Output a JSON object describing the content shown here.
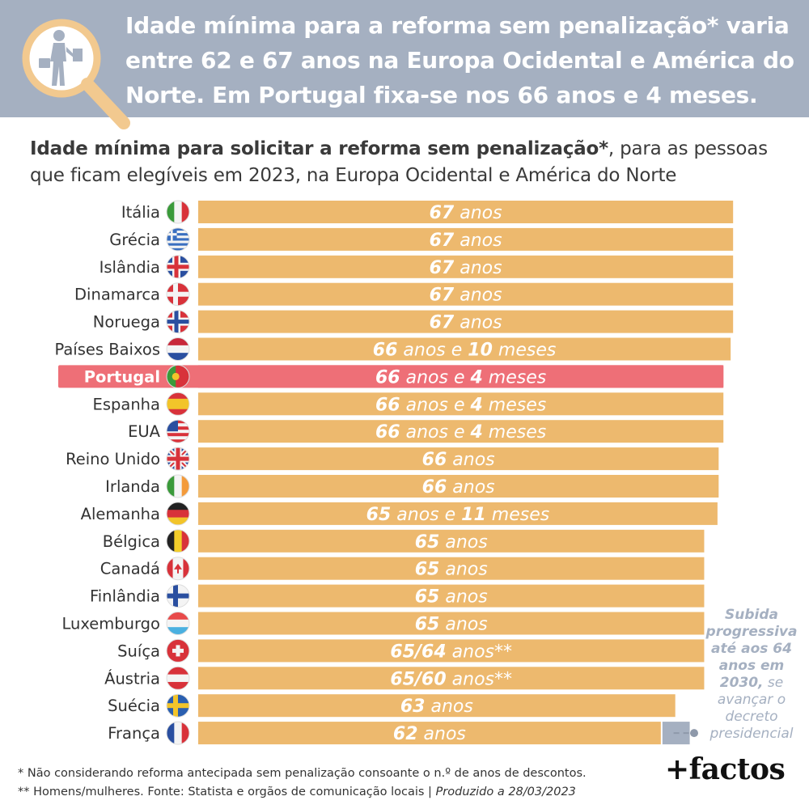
{
  "header": {
    "title": "Idade mínima para a reforma sem penalização* varia entre 62 e 67 anos na Europa Ocidental e América do Norte. Em Portugal fixa-se nos 66 anos e 4 meses.",
    "icon": "magnifier-retiree-icon"
  },
  "subtitle": {
    "bold": "Idade mínima para solicitar a reforma sem penalização*",
    "rest": ", para as pessoas que ficam elegíveis em 2023, na Europa Ocidental e América do Norte"
  },
  "chart_data": {
    "type": "bar",
    "orientation": "horizontal",
    "unit": "anos",
    "categories": [
      "Itália",
      "Grécia",
      "Islândia",
      "Dinamarca",
      "Noruega",
      "Países Baixos",
      "Portugal",
      "Espanha",
      "EUA",
      "Reino Unido",
      "Irlanda",
      "Alemanha",
      "Bélgica",
      "Canadá",
      "Finlândia",
      "Luxemburgo",
      "Suíça",
      "Áustria",
      "Suécia",
      "França"
    ],
    "values": [
      67,
      67,
      67,
      67,
      67,
      66.83,
      66.33,
      66.33,
      66.33,
      66,
      66,
      65.92,
      65,
      65,
      65,
      65,
      65,
      65,
      63,
      62
    ],
    "labels": [
      {
        "num": [
          "67"
        ],
        "text": [
          "67",
          " anos"
        ]
      },
      {
        "text": [
          "67",
          " anos"
        ]
      },
      {
        "text": [
          "67",
          " anos"
        ]
      },
      {
        "text": [
          "67",
          " anos"
        ]
      },
      {
        "text": [
          "67",
          " anos"
        ]
      },
      {
        "text": [
          "66",
          " anos e ",
          "10",
          " meses"
        ]
      },
      {
        "text": [
          "66",
          " anos e ",
          "4",
          " meses"
        ]
      },
      {
        "text": [
          "66",
          " anos e ",
          "4",
          " meses"
        ]
      },
      {
        "text": [
          "66",
          " anos e ",
          "4",
          " meses"
        ]
      },
      {
        "text": [
          "66",
          " anos"
        ]
      },
      {
        "text": [
          "66",
          " anos"
        ]
      },
      {
        "text": [
          "65",
          " anos e ",
          "11",
          " meses"
        ]
      },
      {
        "text": [
          "65",
          " anos"
        ]
      },
      {
        "text": [
          "65",
          " anos"
        ]
      },
      {
        "text": [
          "65",
          " anos"
        ]
      },
      {
        "text": [
          "65",
          " anos"
        ]
      },
      {
        "text": [
          "65/64",
          " anos**"
        ]
      },
      {
        "text": [
          "65/60",
          " anos**"
        ]
      },
      {
        "text": [
          "63",
          " anos"
        ]
      },
      {
        "text": [
          "62",
          " anos"
        ]
      }
    ],
    "flags": [
      "italy-flag-icon",
      "greece-flag-icon",
      "iceland-flag-icon",
      "denmark-flag-icon",
      "norway-flag-icon",
      "netherlands-flag-icon",
      "portugal-flag-icon",
      "spain-flag-icon",
      "usa-flag-icon",
      "uk-flag-icon",
      "ireland-flag-icon",
      "germany-flag-icon",
      "belgium-flag-icon",
      "canada-flag-icon",
      "finland-flag-icon",
      "luxembourg-flag-icon",
      "switzerland-flag-icon",
      "austria-flag-icon",
      "sweden-flag-icon",
      "france-flag-icon"
    ],
    "highlight": "Portugal",
    "extension": {
      "category": "França",
      "to_value": 64
    },
    "colors": {
      "bar": "#edb96e",
      "highlight": "#ee6f77",
      "extension": "#a5b0c1",
      "label": "#ffffff"
    }
  },
  "side_note": {
    "bold": "Subida progressiva até aos 64 anos em 2030,",
    "rest": " se avançar o decreto presidencial"
  },
  "footnotes": {
    "line1": "* Não considerando reforma antecipada sem penalização consoante o n.º de anos de descontos.",
    "line2_main": "** Homens/mulheres. Fonte: Statista e orgãos de comunicação locais | ",
    "line2_italic": "Produzido a 28/03/2023"
  },
  "logo": {
    "text": "+factos"
  }
}
